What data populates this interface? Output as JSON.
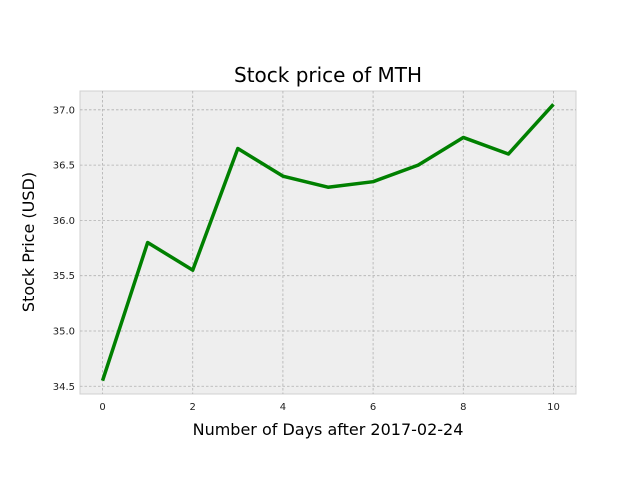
{
  "chart_data": {
    "type": "line",
    "title": "Stock price of MTH",
    "xlabel": "Number of Days after 2017-02-24",
    "ylabel": "Stock Price (USD)",
    "x": [
      0,
      1,
      2,
      3,
      4,
      5,
      6,
      7,
      8,
      9,
      10
    ],
    "series": [
      {
        "values": [
          34.55,
          35.8,
          35.55,
          36.65,
          36.4,
          36.3,
          36.35,
          36.5,
          36.75,
          36.6,
          37.05
        ],
        "color": "#008000"
      }
    ],
    "xlim": [
      -0.5,
      10.5
    ],
    "ylim": [
      34.43,
      37.17
    ],
    "xticks": [
      0,
      2,
      4,
      6,
      8,
      10
    ],
    "yticks": [
      34.5,
      35.0,
      35.5,
      36.0,
      36.5,
      37.0
    ],
    "xtick_labels": [
      "0",
      "2",
      "4",
      "6",
      "8",
      "10"
    ],
    "ytick_labels": [
      "34.5",
      "35.0",
      "35.5",
      "36.0",
      "36.5",
      "37.0"
    ],
    "grid": true,
    "legend": "none"
  }
}
